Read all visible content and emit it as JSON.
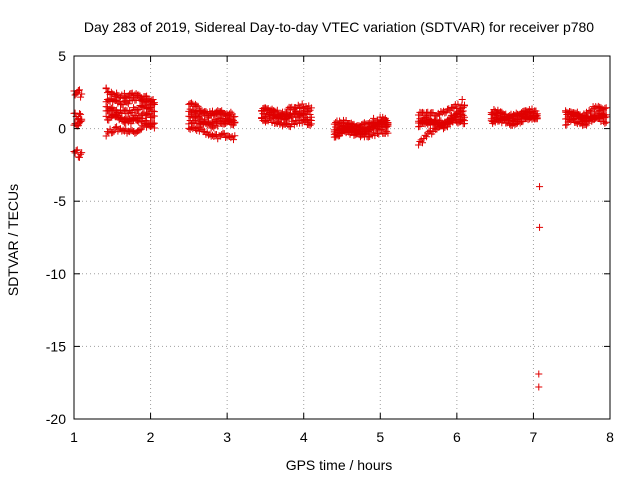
{
  "chart_data": {
    "type": "scatter",
    "title": "Day 283 of 2019, Sidereal Day-to-day VTEC variation (SDTVAR) for receiver p780",
    "xlabel": "GPS time / hours",
    "ylabel": "SDTVAR / TECUs",
    "xlim": [
      1,
      8
    ],
    "ylim": [
      -20,
      5
    ],
    "xticks": [
      "1",
      "2",
      "3",
      "4",
      "5",
      "6",
      "7",
      "8"
    ],
    "yticks": [
      "5",
      "0",
      "-5",
      "-10",
      "-15",
      "-20"
    ],
    "xtick_values": [
      1,
      2,
      3,
      4,
      5,
      6,
      7,
      8
    ],
    "ytick_values": [
      5,
      0,
      -5,
      -10,
      -15,
      -20
    ],
    "grid": true,
    "marker": "+",
    "color": "#e00000",
    "series": [
      {
        "name": "SDTVAR",
        "clusters": [
          {
            "x_range": [
              1.0,
              1.1
            ],
            "y_bands": [
              [
                2.5,
                2.4
              ],
              [
                1.0,
                0.8
              ],
              [
                -1.6,
                -1.9
              ],
              [
                0.3,
                0.5
              ]
            ]
          },
          {
            "x_range": [
              1.42,
              2.05
            ],
            "y_bands": [
              [
                2.6,
                1.8
              ],
              [
                1.8,
                2.1
              ],
              [
                1.2,
                1.4
              ],
              [
                0.6,
                0.9
              ],
              [
                -0.3,
                0.2
              ],
              [
                1.0,
                0.2
              ]
            ]
          },
          {
            "x_range": [
              2.5,
              3.1
            ],
            "y_bands": [
              [
                1.6,
                0.6
              ],
              [
                1.1,
                1.0
              ],
              [
                0.4,
                0.3
              ],
              [
                0.0,
                -0.7
              ],
              [
                0.7,
                0.4
              ]
            ]
          },
          {
            "x_range": [
              3.45,
              4.1
            ],
            "y_bands": [
              [
                1.1,
                1.5
              ],
              [
                0.8,
                1.0
              ],
              [
                0.5,
                0.3
              ],
              [
                1.2,
                0.6
              ]
            ]
          },
          {
            "x_range": [
              4.4,
              5.1
            ],
            "y_bands": [
              [
                -0.2,
                0.3
              ],
              [
                -0.4,
                0.2
              ],
              [
                0.3,
                0.5
              ],
              [
                -0.4,
                -0.3
              ],
              [
                0.0,
                0.1
              ]
            ]
          },
          {
            "x_range": [
              5.5,
              6.1
            ],
            "y_bands": [
              [
                -1.0,
                1.3
              ],
              [
                0.2,
                0.9
              ],
              [
                0.8,
                1.5
              ],
              [
                0.3,
                0.4
              ],
              [
                0.5,
                0.6
              ]
            ]
          },
          {
            "x_range": [
              6.45,
              7.05
            ],
            "y_bands": [
              [
                0.8,
                1.2
              ],
              [
                0.4,
                0.7
              ],
              [
                1.0,
                0.9
              ],
              [
                0.5,
                0.7
              ]
            ]
          },
          {
            "x_range": [
              7.42,
              7.95
            ],
            "y_bands": [
              [
                0.9,
                1.4
              ],
              [
                0.3,
                0.8
              ],
              [
                1.0,
                0.5
              ],
              [
                0.6,
                1.0
              ]
            ]
          }
        ],
        "outliers": [
          {
            "x": 1.42,
            "y": 2.8
          },
          {
            "x": 6.07,
            "y": 2.0
          },
          {
            "x": 7.08,
            "y": -4.0
          },
          {
            "x": 7.08,
            "y": -6.8
          },
          {
            "x": 7.07,
            "y": -16.9
          },
          {
            "x": 7.07,
            "y": -17.8
          }
        ]
      }
    ]
  }
}
